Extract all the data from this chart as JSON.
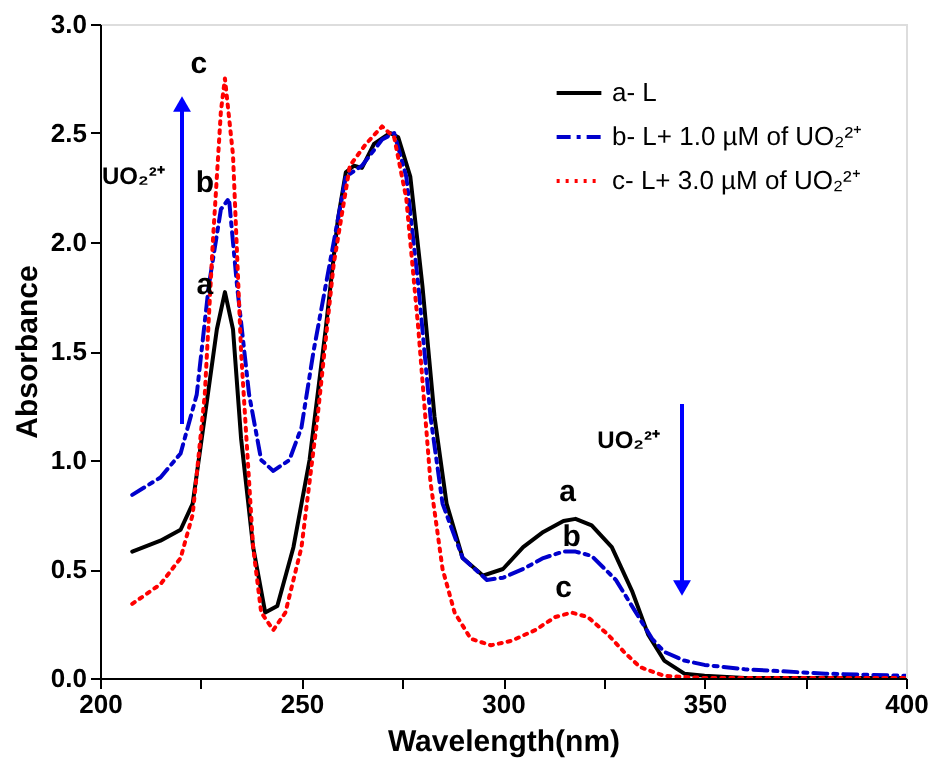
{
  "chart_data": {
    "type": "line",
    "xlabel": "Wavelength(nm)",
    "ylabel": "Absorbance",
    "xlim": [
      200,
      400
    ],
    "ylim": [
      0,
      3.0
    ],
    "xticks": [
      200,
      {
        "value": 225,
        "label": null
      },
      250,
      {
        "value": 275,
        "label": null
      },
      300,
      {
        "value": 325,
        "label": null
      },
      350,
      {
        "value": 375,
        "label": null
      },
      400
    ],
    "yticks": [
      {
        "value": 0,
        "label": "0.0"
      },
      0.5,
      {
        "value": 1.0,
        "label": "1.0"
      },
      1.5,
      {
        "value": 2.0,
        "label": "2.0"
      },
      2.5,
      {
        "value": 3.0,
        "label": "3.0"
      }
    ],
    "grid": false,
    "legend": "top right",
    "marker": "none",
    "series": [
      {
        "name": "a- L",
        "color": "#000000",
        "line_style": "solid",
        "x": [
          208,
          215,
          220,
          223,
          226,
          229,
          231,
          233,
          235,
          238,
          241,
          244,
          248,
          252,
          256,
          259,
          261,
          263,
          265,
          268,
          272,
          274,
          277,
          280,
          283,
          286,
          290,
          295,
          300,
          305,
          310,
          315,
          318,
          322,
          327,
          332,
          336,
          340,
          345,
          350,
          360,
          400
        ],
        "values": [
          0.58,
          0.63,
          0.68,
          0.8,
          1.2,
          1.6,
          1.77,
          1.6,
          1.1,
          0.6,
          0.3,
          0.33,
          0.6,
          1.0,
          1.6,
          2.1,
          2.32,
          2.35,
          2.34,
          2.45,
          2.5,
          2.48,
          2.3,
          1.8,
          1.2,
          0.8,
          0.55,
          0.47,
          0.5,
          0.6,
          0.67,
          0.72,
          0.73,
          0.7,
          0.6,
          0.4,
          0.2,
          0.08,
          0.02,
          0.01,
          0.0,
          0.0
        ]
      },
      {
        "name": "b- L+ 1.0 µM of UO₂²⁺",
        "color": "#0000cc",
        "line_style": "dashdot",
        "x": [
          208,
          215,
          220,
          224,
          227,
          230,
          232,
          234,
          237,
          240,
          243,
          247,
          250,
          253,
          257,
          261,
          265,
          270,
          273,
          276,
          279,
          282,
          285,
          290,
          296,
          300,
          305,
          310,
          315,
          318,
          322,
          328,
          333,
          337,
          340,
          345,
          350,
          360,
          380,
          400
        ],
        "values": [
          0.84,
          0.92,
          1.03,
          1.3,
          1.8,
          2.15,
          2.2,
          1.8,
          1.3,
          1.0,
          0.95,
          1.0,
          1.15,
          1.5,
          1.9,
          2.3,
          2.35,
          2.47,
          2.5,
          2.3,
          1.8,
          1.2,
          0.8,
          0.55,
          0.45,
          0.46,
          0.5,
          0.55,
          0.58,
          0.58,
          0.56,
          0.45,
          0.3,
          0.18,
          0.12,
          0.08,
          0.06,
          0.04,
          0.02,
          0.01
        ]
      },
      {
        "name": "c- L+ 3.0 µM of UO₂²⁺",
        "color": "#ff0000",
        "line_style": "dotted",
        "x": [
          208,
          215,
          220,
          223,
          226,
          228,
          230,
          231,
          233,
          235,
          238,
          240,
          243,
          246,
          250,
          254,
          258,
          262,
          266,
          270,
          273,
          276,
          279,
          282,
          285,
          288,
          292,
          297,
          302,
          308,
          313,
          317,
          321,
          326,
          330,
          334,
          340,
          350,
          400
        ],
        "values": [
          0.34,
          0.43,
          0.55,
          0.75,
          1.3,
          2.0,
          2.6,
          2.75,
          2.4,
          1.5,
          0.6,
          0.3,
          0.22,
          0.3,
          0.6,
          1.2,
          1.9,
          2.35,
          2.45,
          2.53,
          2.48,
          2.2,
          1.6,
          0.9,
          0.5,
          0.3,
          0.18,
          0.15,
          0.17,
          0.22,
          0.28,
          0.3,
          0.28,
          0.2,
          0.12,
          0.05,
          0.01,
          0.0,
          0.0
        ]
      }
    ],
    "annotations": [
      {
        "text": "a",
        "x": 231,
        "y": 1.77
      },
      {
        "text": "b",
        "x": 232,
        "y": 2.2
      },
      {
        "text": "c",
        "x": 231,
        "y": 2.75
      },
      "UO₂²⁺",
      {
        "text": "a",
        "x": 318,
        "y": 0.73
      },
      {
        "text": "b",
        "x": 318,
        "y": 0.58
      },
      {
        "text": "c",
        "x": 317,
        "y": 0.3
      },
      "UO₂²⁺"
    ]
  }
}
